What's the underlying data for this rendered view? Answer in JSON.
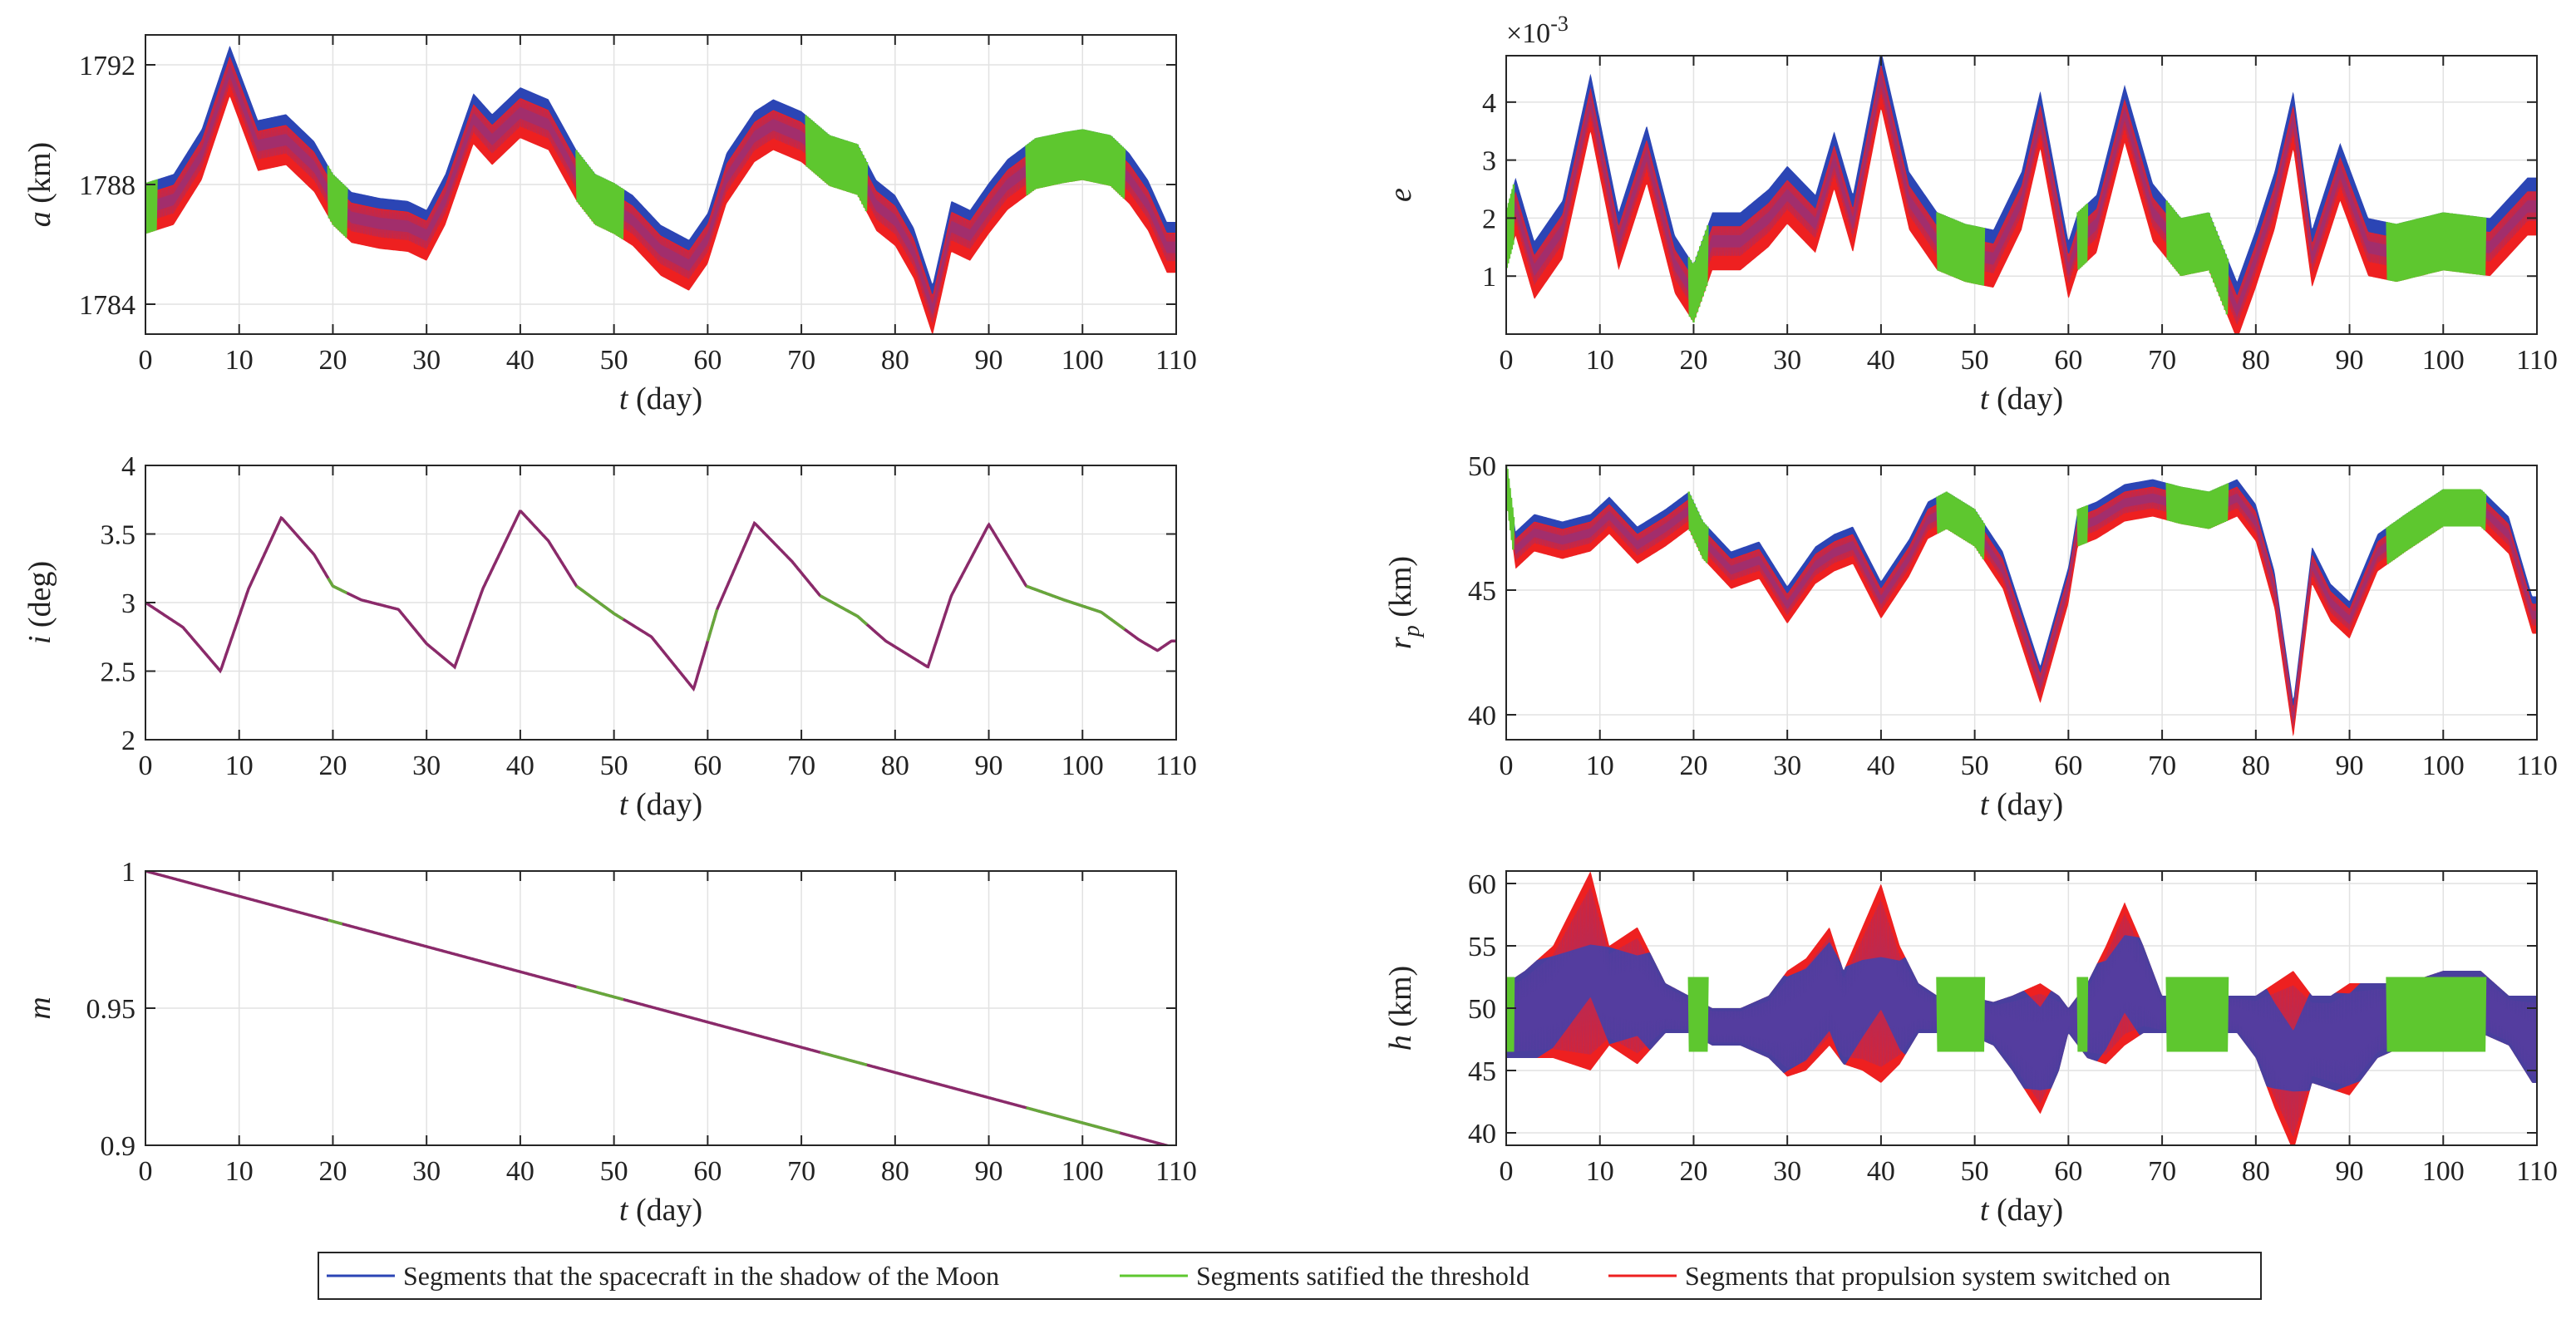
{
  "figure": {
    "colors": {
      "shadow": "#2b45b5",
      "threshold": "#5ec72f",
      "propulsion": "#ee2020",
      "grid": "#e2e2e2",
      "axis": "#262626"
    },
    "legend": {
      "entries": [
        {
          "label": "Segments that the spacecraft in the shadow of the Moon",
          "color_key": "shadow"
        },
        {
          "label": "Segments satified the threshold",
          "color_key": "threshold"
        },
        {
          "label": "Segments that propulsion system switched on",
          "color_key": "propulsion"
        }
      ]
    }
  },
  "chart_data": [
    {
      "id": "a",
      "type": "line",
      "ylabel": "a (km)",
      "ylabel_var": "a",
      "ylabel_unit": " (km)",
      "xlabel_var": "t",
      "xlabel_unit": " (day)",
      "xlim": [
        0,
        110
      ],
      "ylim": [
        1783,
        1793
      ],
      "xticks": [
        0,
        10,
        20,
        30,
        40,
        50,
        60,
        70,
        80,
        90,
        100,
        110
      ],
      "yticks": [
        1784,
        1788,
        1792
      ],
      "band": {
        "kind": "oscillating",
        "x": [
          0,
          3,
          6,
          9,
          12,
          15,
          18,
          20,
          22,
          25,
          28,
          30,
          32,
          35,
          37,
          40,
          43,
          46,
          48,
          50,
          52,
          55,
          58,
          60,
          62,
          65,
          67,
          70,
          73,
          76,
          78,
          80,
          82,
          84,
          86,
          88,
          90,
          92,
          95,
          98,
          100,
          103,
          105,
          107,
          109
        ],
        "center": [
          1787.2,
          1787.5,
          1789,
          1791.8,
          1789.3,
          1789.5,
          1788.6,
          1787.5,
          1786.9,
          1786.7,
          1786.6,
          1786.3,
          1787.5,
          1790.2,
          1789.5,
          1790.4,
          1790,
          1788.3,
          1787.5,
          1787.2,
          1786.8,
          1785.8,
          1785.3,
          1786.2,
          1788.2,
          1789.6,
          1790,
          1789.6,
          1788.8,
          1788.5,
          1787.3,
          1786.8,
          1785.7,
          1783.8,
          1786.6,
          1786.3,
          1787.2,
          1788,
          1788.7,
          1788.9,
          1789,
          1788.8,
          1788.2,
          1787.3,
          1785.9
        ],
        "half": 0.55,
        "lean": 0.3,
        "green_ranges": [
          [
            0,
            1.2
          ],
          [
            19.5,
            21.5
          ],
          [
            46,
            51
          ],
          [
            70.5,
            77
          ],
          [
            94,
            104.5
          ]
        ]
      }
    },
    {
      "id": "e",
      "type": "line",
      "ylabel": "e",
      "ylabel_var": "e",
      "ylabel_unit": "",
      "xlabel_var": "t",
      "xlabel_unit": " (day)",
      "xlim": [
        0,
        110
      ],
      "ylim": [
        0,
        4.8
      ],
      "exponent": "×10-3",
      "exponent_base": "×10",
      "exponent_power": "-3",
      "xticks": [
        0,
        10,
        20,
        30,
        40,
        50,
        60,
        70,
        80,
        90,
        100,
        110
      ],
      "yticks": [
        1,
        2,
        3,
        4
      ],
      "band": {
        "kind": "oscillating",
        "x": [
          0,
          1,
          3,
          6,
          9,
          12,
          15,
          18,
          20,
          22,
          25,
          28,
          30,
          33,
          35,
          37,
          40,
          43,
          46,
          49,
          52,
          55,
          57,
          60,
          61,
          63,
          66,
          69,
          72,
          75,
          78,
          80,
          82,
          84,
          86,
          89,
          92,
          95,
          100,
          105,
          109
        ],
        "center": [
          1.6,
          2.2,
          1.1,
          1.8,
          4,
          1.6,
          3.1,
          1.2,
          0.7,
          1.6,
          1.6,
          2,
          2.4,
          1.9,
          3,
          1.9,
          4.4,
          2.3,
          1.6,
          1.4,
          1.3,
          2.3,
          3.7,
          1.1,
          1.6,
          1.9,
          3.8,
          2.1,
          1.5,
          1.6,
          0.4,
          1.3,
          2.3,
          3.7,
          1.3,
          2.8,
          1.5,
          1.4,
          1.6,
          1.5,
          2.2
        ],
        "half": 0.3,
        "lean": 0.2,
        "green_ranges": [
          [
            0,
            0.8
          ],
          [
            19.5,
            21.5
          ],
          [
            46,
            51
          ],
          [
            61,
            62
          ],
          [
            70.5,
            77
          ],
          [
            94,
            104.5
          ]
        ]
      }
    },
    {
      "id": "i",
      "type": "line",
      "ylabel": "i (deg)",
      "ylabel_var": "i",
      "ylabel_unit": " (deg)",
      "xlabel_var": "t",
      "xlabel_unit": " (day)",
      "xlim": [
        0,
        110
      ],
      "ylim": [
        2,
        4
      ],
      "xticks": [
        0,
        10,
        20,
        30,
        40,
        50,
        60,
        70,
        80,
        90,
        100,
        110
      ],
      "yticks": [
        2,
        2.5,
        3,
        3.5,
        4
      ],
      "band": {
        "kind": "thin",
        "x": [
          0,
          4,
          8,
          11,
          14.5,
          18,
          20,
          23,
          27,
          30,
          33,
          36,
          40,
          43,
          46,
          50,
          54,
          58.5,
          61,
          65,
          69,
          72,
          76,
          79,
          83.5,
          86,
          90,
          94,
          98,
          102,
          106,
          108,
          109.5
        ],
        "center": [
          3,
          2.82,
          2.5,
          3.1,
          3.62,
          3.35,
          3.12,
          3.02,
          2.95,
          2.7,
          2.53,
          3.1,
          3.67,
          3.45,
          3.12,
          2.92,
          2.75,
          2.37,
          2.95,
          3.58,
          3.3,
          3.05,
          2.9,
          2.72,
          2.53,
          3.05,
          3.57,
          3.12,
          3.02,
          2.93,
          2.73,
          2.65,
          2.72
        ],
        "green_ranges": [
          [
            19.5,
            21.5
          ],
          [
            46,
            51
          ],
          [
            60,
            61
          ],
          [
            72,
            77
          ],
          [
            94,
            104.5
          ]
        ]
      }
    },
    {
      "id": "rp",
      "type": "line",
      "ylabel": "rp (km)",
      "ylabel_var": "r",
      "ylabel_sub": "p",
      "ylabel_unit": " (km)",
      "xlabel_var": "t",
      "xlabel_unit": " (day)",
      "xlim": [
        0,
        110
      ],
      "ylim": [
        39,
        50
      ],
      "xticks": [
        0,
        10,
        20,
        30,
        40,
        50,
        60,
        70,
        80,
        90,
        100,
        110
      ],
      "yticks": [
        40,
        45,
        50
      ],
      "band": {
        "kind": "oscillating",
        "x": [
          0,
          1,
          3,
          6,
          9,
          11,
          14,
          17,
          19.5,
          21,
          24,
          27,
          30,
          33,
          35,
          37,
          40,
          43,
          45,
          47,
          50,
          53,
          57,
          60,
          61,
          63,
          66,
          69,
          72,
          75,
          78,
          80,
          82,
          84,
          86,
          88,
          90,
          93,
          96,
          100,
          104,
          107,
          109.5
        ],
        "center": [
          49.5,
          46.6,
          47.3,
          47,
          47.3,
          48,
          46.8,
          47.5,
          48.2,
          47,
          45.8,
          46.2,
          44.4,
          46,
          46.5,
          46.8,
          44.6,
          46.3,
          47.8,
          48.2,
          47.5,
          45.8,
          41.2,
          45.2,
          47.5,
          47.8,
          48.5,
          48.7,
          48.4,
          48.2,
          48.7,
          47.7,
          45,
          39.8,
          46,
          44.5,
          43.8,
          46.5,
          47.3,
          48.3,
          48.3,
          47.2,
          44
        ],
        "half": 0.5,
        "lean": 0.25,
        "green_ranges": [
          [
            0,
            0.8
          ],
          [
            19.5,
            21.5
          ],
          [
            46,
            51
          ],
          [
            61,
            62
          ],
          [
            70.5,
            77
          ],
          [
            94,
            104.5
          ]
        ]
      }
    },
    {
      "id": "m",
      "type": "line",
      "ylabel": "m",
      "ylabel_var": "m",
      "ylabel_unit": "",
      "xlabel_var": "t",
      "xlabel_unit": " (day)",
      "xlim": [
        0,
        110
      ],
      "ylim": [
        0.9,
        1
      ],
      "xticks": [
        0,
        10,
        20,
        30,
        40,
        50,
        60,
        70,
        80,
        90,
        100,
        110
      ],
      "yticks": [
        0.9,
        0.95,
        1
      ],
      "band": {
        "kind": "thin",
        "x": [
          0,
          110
        ],
        "center": [
          1,
          0.899
        ],
        "green_ranges": [
          [
            19.5,
            21
          ],
          [
            46,
            51
          ],
          [
            72,
            77
          ],
          [
            94,
            104
          ]
        ]
      }
    },
    {
      "id": "h",
      "type": "line",
      "ylabel": "h (km)",
      "ylabel_var": "h",
      "ylabel_unit": " (km)",
      "xlabel_var": "t",
      "xlabel_unit": " (day)",
      "xlim": [
        0,
        110
      ],
      "ylim": [
        39,
        61
      ],
      "xticks": [
        0,
        10,
        20,
        30,
        40,
        50,
        60,
        70,
        80,
        90,
        100,
        110
      ],
      "yticks": [
        40,
        45,
        50,
        55,
        60
      ],
      "band": {
        "kind": "lobes",
        "x": [
          0,
          2,
          5,
          9,
          11,
          14,
          17,
          19.5,
          22,
          25,
          28,
          30,
          32,
          34.5,
          36,
          38,
          40,
          42,
          44,
          46,
          49,
          52,
          54,
          57,
          59,
          60,
          62,
          64,
          66,
          68,
          70,
          72,
          75,
          78,
          80,
          82,
          84,
          86,
          88,
          90,
          93,
          96,
          100,
          104,
          107,
          109.5
        ],
        "upper": [
          52,
          53,
          55,
          61,
          55,
          56.5,
          52,
          51,
          50,
          50,
          51,
          53,
          54,
          56.5,
          53,
          56.5,
          60,
          55,
          52,
          51,
          51,
          50.5,
          51,
          52,
          51,
          50,
          52,
          55,
          58.5,
          55,
          51,
          51,
          51,
          51,
          51,
          52,
          53,
          51,
          51,
          52,
          52,
          52,
          53,
          53,
          51,
          51
        ],
        "lower": [
          46,
          46,
          46,
          45,
          47,
          45.5,
          48,
          48,
          47,
          47,
          46,
          44.5,
          45,
          47,
          45.5,
          45,
          44,
          45.5,
          48,
          48,
          48,
          47,
          45,
          41.5,
          45,
          48,
          46,
          45.5,
          47,
          48,
          48,
          48,
          48,
          48,
          46,
          42,
          38.5,
          44,
          43.5,
          43,
          46,
          47,
          47.5,
          48,
          47,
          44
        ],
        "osc_upper": [
          50.5,
          52
        ],
        "osc_lower": [
          47,
          48
        ],
        "green_ranges": [
          [
            0,
            0.8
          ],
          [
            19.5,
            21.5
          ],
          [
            46,
            51
          ],
          [
            61,
            62
          ],
          [
            70.5,
            77
          ],
          [
            94,
            104.5
          ]
        ]
      }
    }
  ]
}
